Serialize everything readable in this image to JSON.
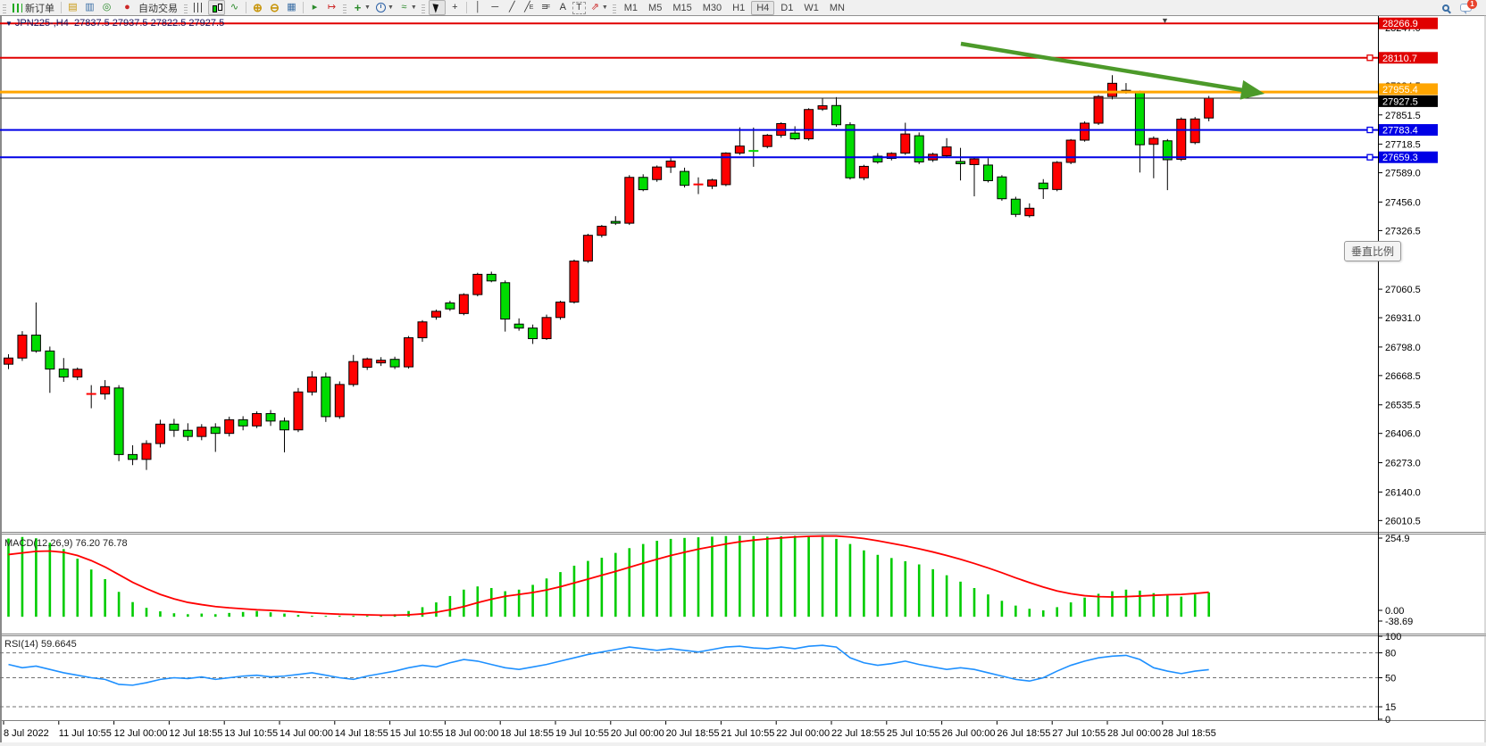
{
  "toolbar": {
    "new_order_label": "新订单",
    "auto_trading_label": "自动交易",
    "chat_badge": "1",
    "timeframes": [
      "M1",
      "M5",
      "M15",
      "M30",
      "H1",
      "H4",
      "D1",
      "W1",
      "MN"
    ],
    "active_timeframe": "H4"
  },
  "chart": {
    "symbol_caret": "▼",
    "symbol_title": "JPN225-,H4",
    "ohlc_text": "27837.5 27937.5 27822.5 27927.5",
    "macd_label": "MACD(12,26,9) 76.20 76.78",
    "rsi_label": "RSI(14) 59.6645",
    "tooltip_text": "垂直比例"
  },
  "chart_data": [
    {
      "type": "candlestick",
      "symbol": "JPN225-",
      "timeframe": "H4",
      "ohlc_current": {
        "open": 27837.5,
        "high": 27937.5,
        "low": 27822.5,
        "close": 27927.5
      },
      "up_color": "#FF0000",
      "down_color": "#00DC00",
      "wick_color": "#000000",
      "bid_price": 27927.5,
      "price_ticks": [
        28247.0,
        27984.5,
        27851.5,
        27718.5,
        27589.0,
        27456.0,
        27326.5,
        27060.5,
        26931.0,
        26798.0,
        26668.5,
        26535.5,
        26406.0,
        26273.0,
        26140.0,
        26010.5
      ],
      "hlines": [
        {
          "price": 28266.9,
          "color": "#E00000",
          "width": 2,
          "handle": false
        },
        {
          "price": 28110.7,
          "color": "#E00000",
          "width": 2,
          "handle": true
        },
        {
          "price": 27955.4,
          "color": "#FFA500",
          "width": 3,
          "handle": false
        },
        {
          "price": 27783.4,
          "color": "#0000E6",
          "width": 2,
          "handle": true
        },
        {
          "price": 27659.3,
          "color": "#0000E6",
          "width": 2,
          "handle": true
        }
      ],
      "trend_arrow": {
        "from": [
          1076,
          32
        ],
        "to": [
          1416,
          88
        ],
        "color": "#4C9A2A"
      },
      "time_labels": [
        "8 Jul 2022",
        "11 Jul 10:55",
        "12 Jul 00:00",
        "12 Jul 18:55",
        "13 Jul 10:55",
        "14 Jul 00:00",
        "14 Jul 18:55",
        "15 Jul 10:55",
        "18 Jul 00:00",
        "18 Jul 18:55",
        "19 Jul 10:55",
        "20 Jul 00:00",
        "20 Jul 18:55",
        "21 Jul 10:55",
        "22 Jul 00:00",
        "22 Jul 18:55",
        "25 Jul 10:55",
        "26 Jul 00:00",
        "26 Jul 18:55",
        "27 Jul 10:55",
        "28 Jul 00:00",
        "28 Jul 18:55"
      ],
      "candles": [
        [
          26720,
          26765,
          26698,
          26748
        ],
        [
          26748,
          26870,
          26735,
          26852
        ],
        [
          26852,
          27000,
          26772,
          26780
        ],
        [
          26780,
          26800,
          26590,
          26698
        ],
        [
          26698,
          26748,
          26640,
          26662
        ],
        [
          26662,
          26705,
          26648,
          26697
        ],
        [
          26585,
          26625,
          26520,
          26585
        ],
        [
          26585,
          26648,
          26560,
          26618
        ],
        [
          26612,
          26625,
          26280,
          26310
        ],
        [
          26310,
          26352,
          26262,
          26288
        ],
        [
          26288,
          26375,
          26240,
          26360
        ],
        [
          26360,
          26468,
          26342,
          26448
        ],
        [
          26448,
          26472,
          26390,
          26420
        ],
        [
          26420,
          26452,
          26372,
          26392
        ],
        [
          26392,
          26448,
          26375,
          26434
        ],
        [
          26434,
          26452,
          26322,
          26406
        ],
        [
          26406,
          26482,
          26392,
          26468
        ],
        [
          26468,
          26484,
          26420,
          26440
        ],
        [
          26440,
          26506,
          26430,
          26496
        ],
        [
          26496,
          26512,
          26440,
          26462
        ],
        [
          26462,
          26478,
          26320,
          26422
        ],
        [
          26422,
          26612,
          26412,
          26594
        ],
        [
          26594,
          26688,
          26578,
          26662
        ],
        [
          26662,
          26682,
          26458,
          26482
        ],
        [
          26482,
          26642,
          26472,
          26628
        ],
        [
          26628,
          26762,
          26618,
          26732
        ],
        [
          26706,
          26750,
          26694,
          26744
        ],
        [
          26726,
          26752,
          26712,
          26738
        ],
        [
          26742,
          26754,
          26698,
          26708
        ],
        [
          26708,
          26848,
          26700,
          26840
        ],
        [
          26840,
          26920,
          26822,
          26912
        ],
        [
          26934,
          26968,
          26922,
          26960
        ],
        [
          26998,
          27008,
          26962,
          26971
        ],
        [
          26950,
          27042,
          26942,
          27036
        ],
        [
          27036,
          27135,
          27028,
          27128
        ],
        [
          27128,
          27140,
          27092,
          27098
        ],
        [
          27090,
          27100,
          26868,
          26925
        ],
        [
          26902,
          26928,
          26872,
          26884
        ],
        [
          26884,
          26900,
          26812,
          26836
        ],
        [
          26836,
          26945,
          26830,
          26932
        ],
        [
          26932,
          27008,
          26922,
          27002
        ],
        [
          27002,
          27195,
          26995,
          27188
        ],
        [
          27188,
          27312,
          27180,
          27305
        ],
        [
          27305,
          27352,
          27295,
          27346
        ],
        [
          27368,
          27392,
          27352,
          27360
        ],
        [
          27360,
          27578,
          27352,
          27568
        ],
        [
          27568,
          27582,
          27505,
          27512
        ],
        [
          27558,
          27622,
          27548,
          27615
        ],
        [
          27615,
          27655,
          27588,
          27642
        ],
        [
          27595,
          27612,
          27522,
          27532
        ],
        [
          27536,
          27568,
          27492,
          27536
        ],
        [
          27528,
          27562,
          27515,
          27556
        ],
        [
          27535,
          27682,
          27528,
          27678
        ],
        [
          27678,
          27795,
          27670,
          27710
        ],
        [
          27692,
          27794,
          27616,
          27688
        ],
        [
          27708,
          27765,
          27700,
          27759
        ],
        [
          27759,
          27818,
          27748,
          27812
        ],
        [
          27769,
          27800,
          27738,
          27743
        ],
        [
          27743,
          27882,
          27735,
          27876
        ],
        [
          27878,
          27928,
          27870,
          27893
        ],
        [
          27894,
          27932,
          27798,
          27807
        ],
        [
          27807,
          27818,
          27558,
          27566
        ],
        [
          27566,
          27625,
          27555,
          27618
        ],
        [
          27664,
          27678,
          27630,
          27638
        ],
        [
          27654,
          27682,
          27645,
          27677
        ],
        [
          27678,
          27816,
          27670,
          27765
        ],
        [
          27757,
          27772,
          27628,
          27638
        ],
        [
          27647,
          27680,
          27638,
          27673
        ],
        [
          27666,
          27746,
          27658,
          27706
        ],
        [
          27640,
          27702,
          27554,
          27630
        ],
        [
          27626,
          27660,
          27482,
          27652
        ],
        [
          27624,
          27655,
          27545,
          27553
        ],
        [
          27570,
          27578,
          27462,
          27471
        ],
        [
          27469,
          27480,
          27388,
          27400
        ],
        [
          27394,
          27450,
          27386,
          27428
        ],
        [
          27542,
          27560,
          27470,
          27516
        ],
        [
          27513,
          27642,
          27505,
          27636
        ],
        [
          27636,
          27742,
          27628,
          27737
        ],
        [
          27737,
          27822,
          27730,
          27814
        ],
        [
          27814,
          27942,
          27806,
          27935
        ],
        [
          27935,
          28032,
          27922,
          27995
        ],
        [
          27956,
          27996,
          27948,
          27963
        ],
        [
          27952,
          27962,
          27590,
          27716
        ],
        [
          27718,
          27754,
          27564,
          27745
        ],
        [
          27734,
          27742,
          27510,
          27648
        ],
        [
          27650,
          27840,
          27642,
          27832
        ],
        [
          27726,
          27842,
          27718,
          27833
        ],
        [
          27837.5,
          27937.5,
          27822.5,
          27927.5
        ]
      ]
    },
    {
      "type": "bar",
      "name": "MACD",
      "params": "12,26,9",
      "current_value": 76.2,
      "current_signal": 76.78,
      "scale_max": 254.9,
      "scale_zero": "0.00",
      "scale_min": -38.69,
      "histogram_color": "#00CC00",
      "signal_color": "#FF0000",
      "values": [
        245,
        250,
        246,
        232,
        212,
        182,
        148,
        118,
        78,
        46,
        28,
        17,
        11,
        8,
        10,
        8,
        12,
        15,
        18,
        14,
        10,
        6,
        3,
        2,
        2,
        3,
        2,
        3,
        8,
        18,
        30,
        45,
        65,
        85,
        95,
        90,
        80,
        85,
        100,
        120,
        140,
        160,
        175,
        185,
        200,
        215,
        228,
        238,
        244,
        247,
        249,
        251,
        253,
        254,
        253,
        251,
        252,
        254,
        253,
        250,
        244,
        228,
        208,
        194,
        184,
        174,
        164,
        149,
        130,
        110,
        90,
        70,
        50,
        35,
        25,
        20,
        30,
        45,
        60,
        72,
        80,
        85,
        82,
        74,
        67,
        63,
        70,
        76.2
      ],
      "signal": [
        195,
        200,
        205,
        206,
        202,
        192,
        176,
        156,
        132,
        108,
        88,
        70,
        56,
        45,
        38,
        32,
        28,
        25,
        22,
        20,
        18,
        15,
        12,
        10,
        8,
        7,
        6,
        5,
        5,
        6,
        9,
        14,
        22,
        32,
        44,
        55,
        64,
        70,
        76,
        84,
        94,
        106,
        118,
        130,
        142,
        155,
        168,
        180,
        192,
        202,
        212,
        220,
        228,
        235,
        240,
        244,
        247,
        250,
        252,
        253,
        253,
        250,
        245,
        238,
        230,
        222,
        213,
        203,
        192,
        180,
        167,
        153,
        138,
        122,
        107,
        93,
        81,
        72,
        66,
        63,
        62,
        63,
        65,
        67,
        69,
        70,
        73,
        76.8
      ]
    },
    {
      "type": "line",
      "name": "RSI",
      "period": 14,
      "current_value": 59.6645,
      "levels": [
        80,
        50,
        15
      ],
      "scale": [
        100,
        80,
        50,
        15,
        0
      ],
      "line_color": "#1E90FF",
      "values": [
        66,
        62,
        64,
        60,
        56,
        53,
        50,
        48,
        42,
        41,
        44,
        48,
        50,
        49,
        51,
        48,
        50,
        52,
        53,
        51,
        52,
        54,
        56,
        53,
        50,
        48,
        52,
        55,
        58,
        62,
        65,
        63,
        68,
        72,
        70,
        66,
        62,
        60,
        63,
        66,
        70,
        74,
        78,
        81,
        84,
        87,
        85,
        83,
        85,
        83,
        81,
        84,
        87,
        88,
        86,
        85,
        87,
        85,
        88,
        89,
        87,
        74,
        68,
        65,
        67,
        70,
        66,
        63,
        60,
        62,
        60,
        56,
        52,
        48,
        46,
        50,
        58,
        65,
        70,
        74,
        76,
        77,
        72,
        62,
        58,
        55,
        58,
        59.7
      ]
    }
  ]
}
